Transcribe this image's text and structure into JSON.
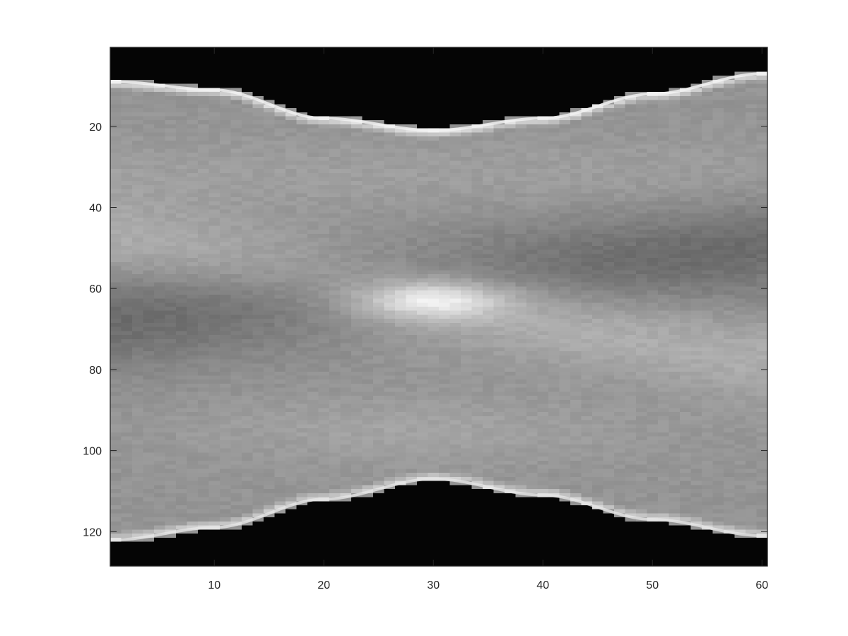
{
  "chart_data": {
    "type": "heatmap",
    "colormap": "gray",
    "title": "",
    "xlabel": "",
    "ylabel": "",
    "xlim": [
      0.5,
      60.5
    ],
    "ylim": [
      0.5,
      128.5
    ],
    "y_axis_direction": "reversed",
    "grid": false,
    "n_columns": 60,
    "n_rows": 128,
    "x_ticks": [
      10,
      20,
      30,
      40,
      50,
      60
    ],
    "y_ticks": [
      20,
      40,
      60,
      80,
      100,
      120
    ],
    "x_tick_labels": [
      "10",
      "20",
      "30",
      "40",
      "50",
      "60"
    ],
    "y_tick_labels": [
      "20",
      "40",
      "60",
      "80",
      "100",
      "120"
    ],
    "support_top_edge": [
      {
        "x": 1,
        "y": 9
      },
      {
        "x": 10,
        "y": 11
      },
      {
        "x": 20,
        "y": 18
      },
      {
        "x": 30,
        "y": 21
      },
      {
        "x": 40,
        "y": 18
      },
      {
        "x": 50,
        "y": 12
      },
      {
        "x": 60,
        "y": 7
      }
    ],
    "support_bottom_edge": [
      {
        "x": 1,
        "y": 122
      },
      {
        "x": 10,
        "y": 119
      },
      {
        "x": 20,
        "y": 112
      },
      {
        "x": 30,
        "y": 107
      },
      {
        "x": 40,
        "y": 111
      },
      {
        "x": 50,
        "y": 117
      },
      {
        "x": 60,
        "y": 121
      }
    ],
    "brightest_region": {
      "x": 30,
      "y": 63
    },
    "intensity_range": [
      0,
      1
    ]
  },
  "colors": {
    "background": "#ffffff",
    "axes_frame": "#262626",
    "outside_support": "#000000"
  }
}
